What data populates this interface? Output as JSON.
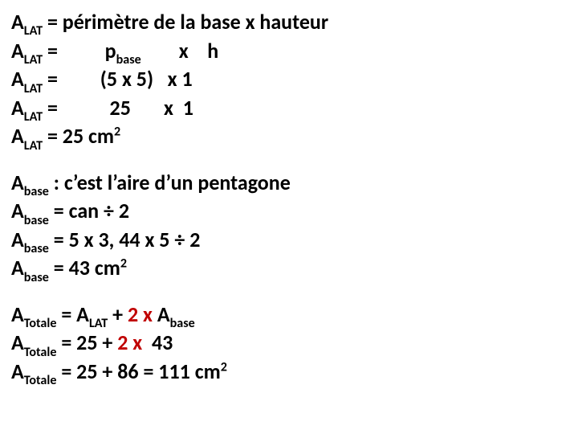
{
  "colors": {
    "text": "#000000",
    "red": "#c00000",
    "background": "#ffffff"
  },
  "lat": {
    "l1": {
      "sym": "A",
      "sub": "LAT",
      "eq": " = périmètre de la base x hauteur"
    },
    "l2": {
      "sym": "A",
      "sub": "LAT",
      "eq1": " =          p",
      "psub": "base",
      "eq2": "        x    h"
    },
    "l3": {
      "sym": "A",
      "sub": "LAT",
      "eq": " =         (5 x 5)   x 1"
    },
    "l4": {
      "sym": "A",
      "sub": "LAT",
      "eq": " =           25       x  1"
    },
    "l5": {
      "sym": "A",
      "sub": "LAT",
      "eq1": " = 25 cm",
      "sup": "2"
    }
  },
  "base": {
    "l1": {
      "sym": "A",
      "sub": "base",
      "eq": " : c’est l’aire d’un pentagone"
    },
    "l2": {
      "sym": "A",
      "sub": "base",
      "eq": " = can ÷ 2"
    },
    "l3": {
      "sym": "A",
      "sub": "base",
      "eq": " = 5 x 3, 44 x 5 ÷ 2"
    },
    "l4": {
      "sym": "A",
      "sub": "base",
      "eq1": " = 43 cm",
      "sup": "2"
    }
  },
  "tot": {
    "l1": {
      "sym": "A",
      "sub": "Totale",
      "eq1": " = A",
      "sub2": "LAT",
      "eq2": " + ",
      "red1": "2 x",
      "eq3": " A",
      "sub3": "base"
    },
    "l2": {
      "sym": "A",
      "sub": "Totale",
      "eq1": " = 25 + ",
      "red1": "2 x",
      "eq2": "  43"
    },
    "l3": {
      "sym": "A",
      "sub": "Totale",
      "eq1": " = 25 + 86 = 111 cm",
      "sup": "2"
    }
  }
}
